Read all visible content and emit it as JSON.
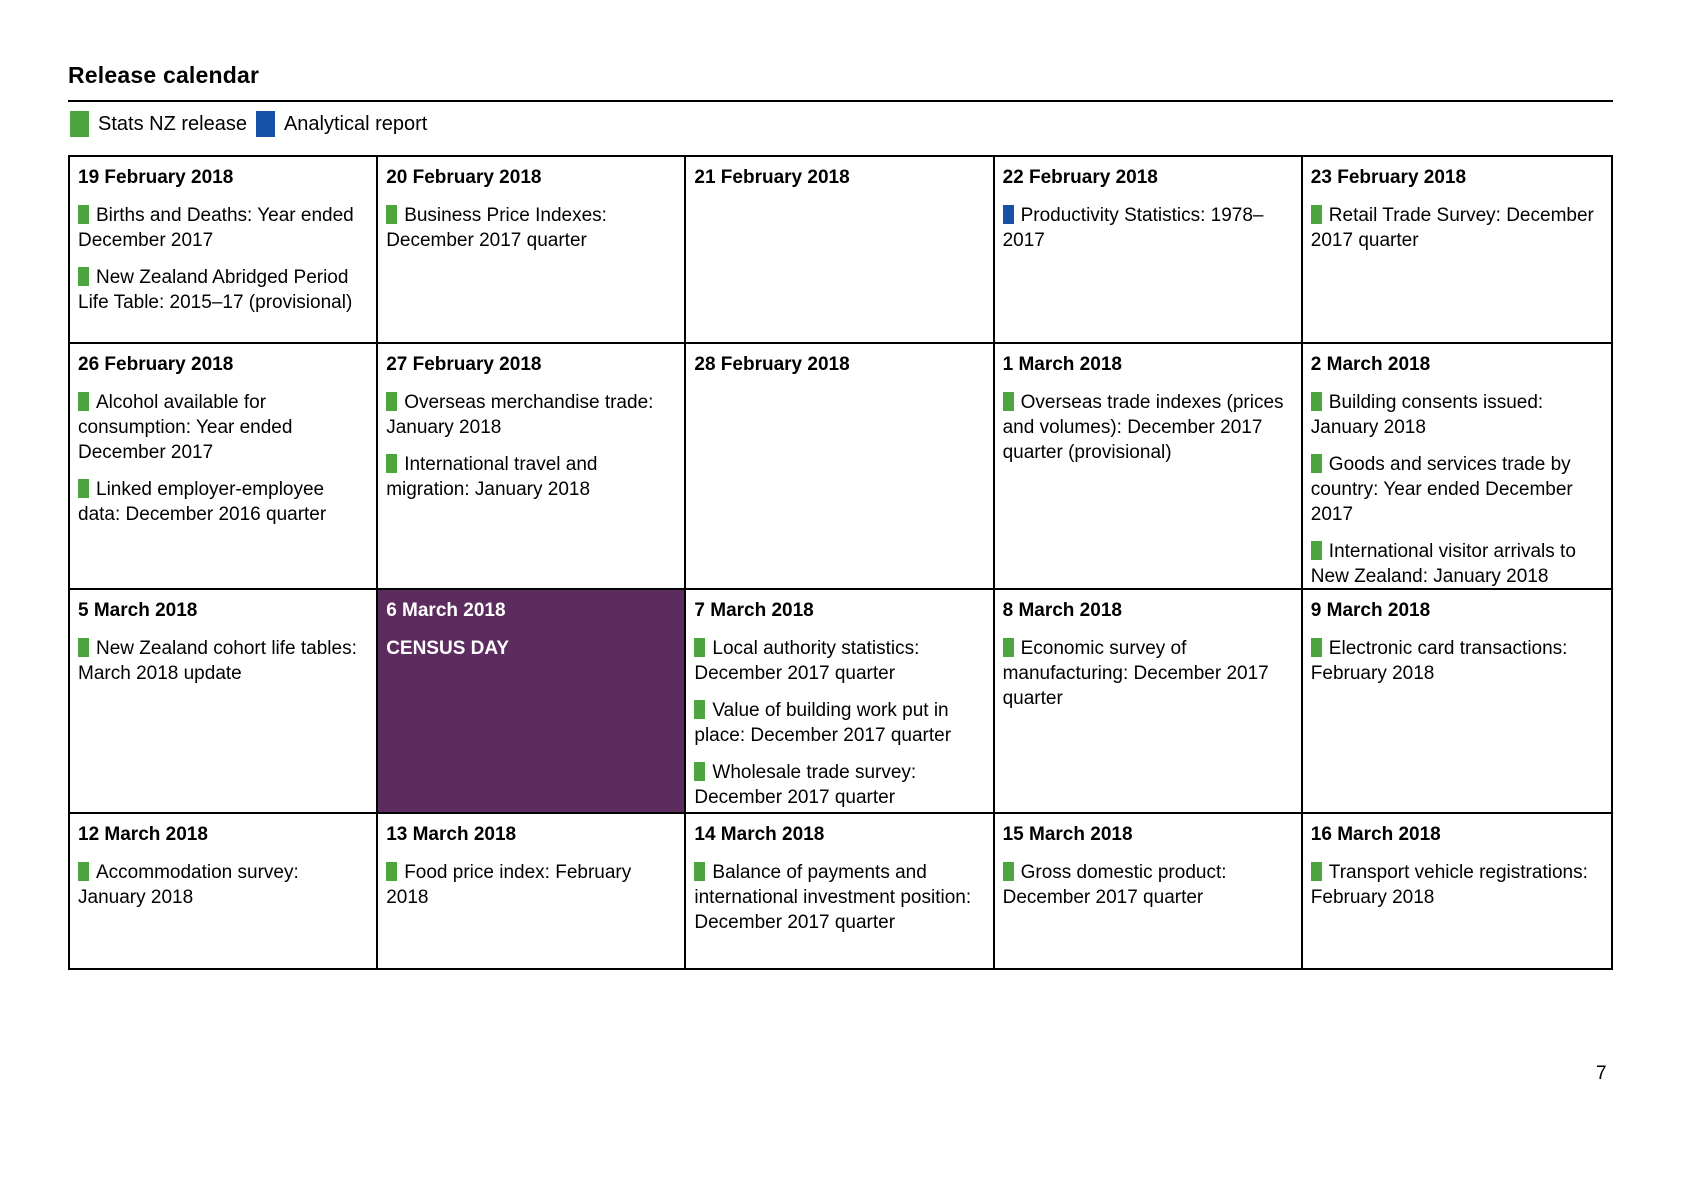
{
  "page": {
    "title": "Release calendar",
    "page_number": "7"
  },
  "colors": {
    "stats_nz_release": "#4CA63D",
    "analytical_report": "#1552A6",
    "census_background": "#5C2C5E",
    "census_text": "#FFFFFF",
    "border": "#000000"
  },
  "legend": {
    "items": [
      {
        "key": "stats_nz_release",
        "label": "Stats NZ release",
        "color": "#4CA63D"
      },
      {
        "key": "analytical_report",
        "label": "Analytical report",
        "color": "#1552A6"
      }
    ]
  },
  "calendar": {
    "rows": [
      {
        "cells": [
          {
            "date": "19 February 2018",
            "items": [
              {
                "type": "stats_nz_release",
                "text": "Births and Deaths: Year ended December 2017"
              },
              {
                "type": "stats_nz_release",
                "text": "New Zealand Abridged Period Life Table: 2015–17 (provisional)"
              }
            ]
          },
          {
            "date": "20 February 2018",
            "items": [
              {
                "type": "stats_nz_release",
                "text": "Business Price Indexes: December 2017 quarter"
              }
            ]
          },
          {
            "date": "21 February 2018",
            "items": []
          },
          {
            "date": "22 February 2018",
            "items": [
              {
                "type": "analytical_report",
                "text": "Productivity Statistics: 1978–2017"
              }
            ]
          },
          {
            "date": "23 February 2018",
            "items": [
              {
                "type": "stats_nz_release",
                "text": "Retail Trade Survey: December 2017 quarter"
              }
            ]
          }
        ]
      },
      {
        "cells": [
          {
            "date": "26 February 2018",
            "items": [
              {
                "type": "stats_nz_release",
                "text": "Alcohol available for consumption: Year ended December 2017"
              },
              {
                "type": "stats_nz_release",
                "text": "Linked employer-employee data: December 2016 quarter"
              }
            ]
          },
          {
            "date": "27 February 2018",
            "items": [
              {
                "type": "stats_nz_release",
                "text": "Overseas merchandise trade: January 2018"
              },
              {
                "type": "stats_nz_release",
                "text": "International travel and migration: January 2018"
              }
            ]
          },
          {
            "date": "28 February 2018",
            "items": []
          },
          {
            "date": "1 March 2018",
            "items": [
              {
                "type": "stats_nz_release",
                "text": "Overseas trade indexes (prices and volumes): December 2017 quarter (provisional)"
              }
            ]
          },
          {
            "date": "2 March 2018",
            "items": [
              {
                "type": "stats_nz_release",
                "text": "Building consents issued: January 2018"
              },
              {
                "type": "stats_nz_release",
                "text": "Goods and services trade by country: Year ended December 2017"
              },
              {
                "type": "stats_nz_release",
                "text": "International visitor arrivals to New Zealand: January 2018"
              }
            ]
          }
        ]
      },
      {
        "cells": [
          {
            "date": "5 March 2018",
            "items": [
              {
                "type": "stats_nz_release",
                "text": "New Zealand cohort life tables: March 2018 update"
              }
            ]
          },
          {
            "date": "6 March 2018",
            "census": true,
            "label": "CENSUS DAY",
            "items": []
          },
          {
            "date": "7 March 2018",
            "items": [
              {
                "type": "stats_nz_release",
                "text": "Local authority statistics: December 2017 quarter"
              },
              {
                "type": "stats_nz_release",
                "text": "Value of building work put in place: December 2017 quarter"
              },
              {
                "type": "stats_nz_release",
                "text": "Wholesale trade survey: December 2017 quarter"
              }
            ]
          },
          {
            "date": "8 March 2018",
            "items": [
              {
                "type": "stats_nz_release",
                "text": "Economic survey of manufacturing: December 2017 quarter"
              }
            ]
          },
          {
            "date": "9 March 2018",
            "items": [
              {
                "type": "stats_nz_release",
                "text": "Electronic card transactions: February 2018"
              }
            ]
          }
        ]
      },
      {
        "cells": [
          {
            "date": "12 March 2018",
            "items": [
              {
                "type": "stats_nz_release",
                "text": "Accommodation survey: January 2018"
              }
            ]
          },
          {
            "date": "13 March 2018",
            "items": [
              {
                "type": "stats_nz_release",
                "text": "Food price index: February 2018"
              }
            ]
          },
          {
            "date": "14 March 2018",
            "items": [
              {
                "type": "stats_nz_release",
                "text": "Balance of payments and international investment position: December 2017 quarter"
              }
            ]
          },
          {
            "date": "15 March 2018",
            "items": [
              {
                "type": "stats_nz_release",
                "text": "Gross domestic product: December 2017 quarter"
              }
            ]
          },
          {
            "date": "16 March 2018",
            "items": [
              {
                "type": "stats_nz_release",
                "text": "Transport vehicle registrations: February 2018"
              }
            ]
          }
        ]
      }
    ]
  }
}
